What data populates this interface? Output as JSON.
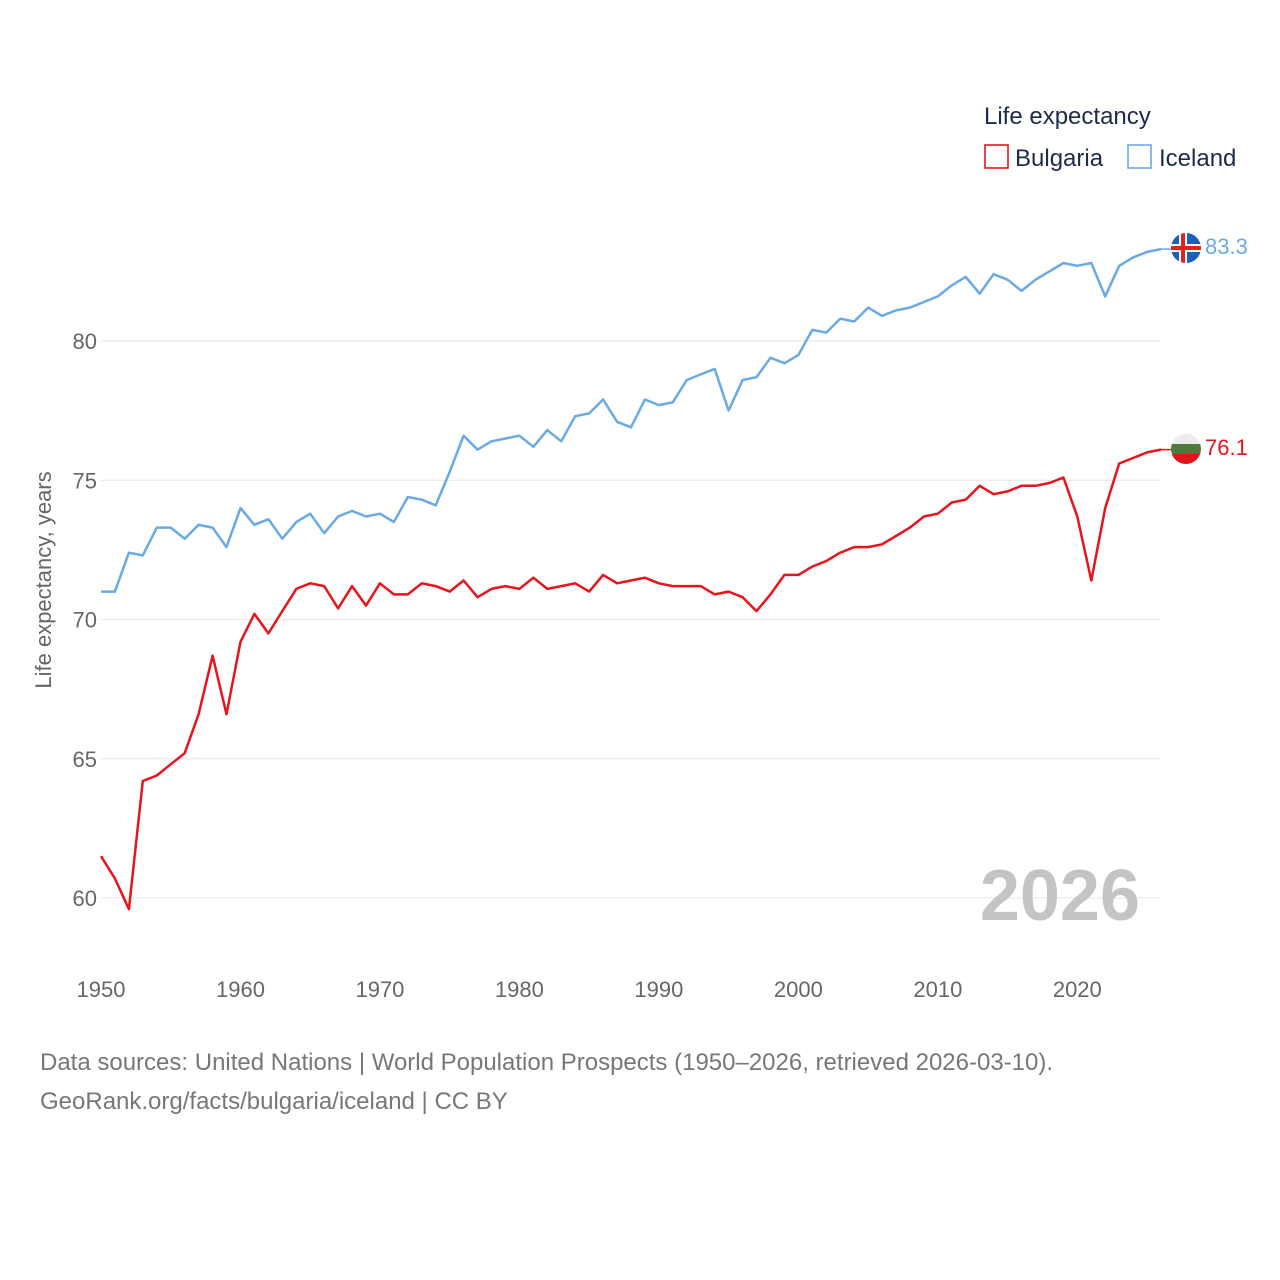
{
  "legend": {
    "title": "Life expectancy",
    "items": [
      {
        "label": "Bulgaria",
        "color": "#e8141c"
      },
      {
        "label": "Iceland",
        "color": "#6aaae4"
      }
    ]
  },
  "current_year": "2026",
  "source_line1": "Data sources: United Nations | World Population Prospects (1950–2026, retrieved 2026-03-10).",
  "source_line2": "GeoRank.org/facts/bulgaria/iceland | CC BY",
  "chart_data": {
    "type": "line",
    "title": "Life expectancy",
    "xlabel": "",
    "ylabel": "Life expectancy, years",
    "xlim": [
      1950,
      2026
    ],
    "ylim": [
      58.5,
      84.5
    ],
    "grid": true,
    "legend_position": "top-right",
    "x_ticks": [
      1950,
      1960,
      1970,
      1980,
      1990,
      2000,
      2010,
      2020
    ],
    "y_ticks": [
      60,
      65,
      70,
      75,
      80
    ],
    "x": [
      1950,
      1951,
      1952,
      1953,
      1954,
      1955,
      1956,
      1957,
      1958,
      1959,
      1960,
      1961,
      1962,
      1963,
      1964,
      1965,
      1966,
      1967,
      1968,
      1969,
      1970,
      1971,
      1972,
      1973,
      1974,
      1975,
      1976,
      1977,
      1978,
      1979,
      1980,
      1981,
      1982,
      1983,
      1984,
      1985,
      1986,
      1987,
      1988,
      1989,
      1990,
      1991,
      1992,
      1993,
      1994,
      1995,
      1996,
      1997,
      1998,
      1999,
      2000,
      2001,
      2002,
      2003,
      2004,
      2005,
      2006,
      2007,
      2008,
      2009,
      2010,
      2011,
      2012,
      2013,
      2014,
      2015,
      2016,
      2017,
      2018,
      2019,
      2020,
      2021,
      2022,
      2023,
      2024,
      2025,
      2026
    ],
    "series": [
      {
        "name": "Bulgaria",
        "color": "#e8141c",
        "end_label": "76.1",
        "values": [
          61.5,
          60.7,
          59.6,
          64.2,
          64.4,
          64.8,
          65.2,
          66.6,
          68.7,
          66.6,
          69.2,
          70.2,
          69.5,
          70.3,
          71.1,
          71.3,
          71.2,
          70.4,
          71.2,
          70.5,
          71.3,
          70.9,
          70.9,
          71.3,
          71.2,
          71.0,
          71.4,
          70.8,
          71.1,
          71.2,
          71.1,
          71.5,
          71.1,
          71.2,
          71.3,
          71.0,
          71.6,
          71.3,
          71.4,
          71.5,
          71.3,
          71.2,
          71.2,
          71.2,
          70.9,
          71.0,
          70.8,
          70.3,
          70.9,
          71.6,
          71.6,
          71.9,
          72.1,
          72.4,
          72.6,
          72.6,
          72.7,
          73.0,
          73.3,
          73.7,
          73.8,
          74.2,
          74.3,
          74.8,
          74.5,
          74.6,
          74.8,
          74.8,
          74.9,
          75.1,
          73.7,
          71.4,
          74.0,
          75.6,
          75.8,
          76.0,
          76.1
        ]
      },
      {
        "name": "Iceland",
        "color": "#6aaae4",
        "end_label": "83.3",
        "values": [
          71.0,
          71.0,
          72.4,
          72.3,
          73.3,
          73.3,
          72.9,
          73.4,
          73.3,
          72.6,
          74.0,
          73.4,
          73.6,
          72.9,
          73.5,
          73.8,
          73.1,
          73.7,
          73.9,
          73.7,
          73.8,
          73.5,
          74.4,
          74.3,
          74.1,
          75.3,
          76.6,
          76.1,
          76.4,
          76.5,
          76.6,
          76.2,
          76.8,
          76.4,
          77.3,
          77.4,
          77.9,
          77.1,
          76.9,
          77.9,
          77.7,
          77.8,
          78.6,
          78.8,
          79.0,
          77.5,
          78.6,
          78.7,
          79.4,
          79.2,
          79.5,
          80.4,
          80.3,
          80.8,
          80.7,
          81.2,
          80.9,
          81.1,
          81.2,
          81.4,
          81.6,
          82.0,
          82.3,
          81.7,
          82.4,
          82.2,
          81.8,
          82.2,
          82.5,
          82.8,
          82.7,
          82.8,
          81.6,
          82.7,
          83.0,
          83.2,
          83.3
        ]
      }
    ]
  }
}
